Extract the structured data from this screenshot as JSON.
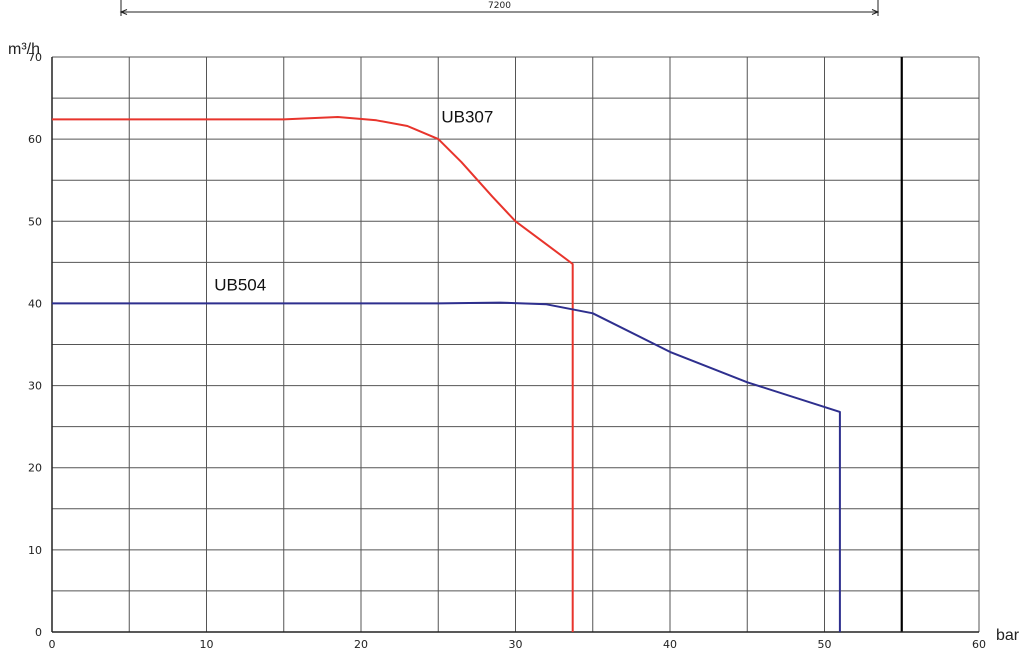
{
  "chart_data": {
    "type": "line",
    "ylabel": "m³/h",
    "xlabel": "bar",
    "xlim": [
      0,
      60
    ],
    "ylim": [
      0,
      70
    ],
    "x_ticks": [
      0,
      10,
      20,
      30,
      40,
      50,
      60
    ],
    "y_ticks": [
      0,
      10,
      20,
      30,
      40,
      50,
      60,
      70
    ],
    "grid": true,
    "x_grid_step": 5,
    "y_grid_step": 5,
    "dimension_annotation": "7200",
    "vertical_reference_x": 55,
    "series": [
      {
        "name": "UB307",
        "color": "#e8342c",
        "x": [
          0,
          5,
          10,
          15,
          18.5,
          21,
          23,
          25,
          26.5,
          28.5,
          30,
          32,
          33.7,
          33.7
        ],
        "y": [
          62.4,
          62.4,
          62.4,
          62.4,
          62.7,
          62.3,
          61.6,
          60.0,
          57.2,
          53.0,
          50.0,
          47.2,
          44.8,
          0
        ]
      },
      {
        "name": "UB504",
        "color": "#2e2f8e",
        "x": [
          0,
          10,
          20,
          25,
          29,
          32,
          35,
          40,
          45,
          51,
          51
        ],
        "y": [
          40,
          40,
          40,
          40,
          40.1,
          39.9,
          38.8,
          34.1,
          30.4,
          26.8,
          0
        ]
      }
    ]
  }
}
